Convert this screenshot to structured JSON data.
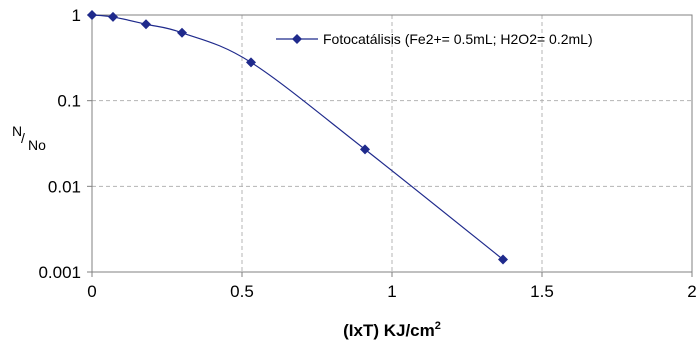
{
  "chart_data": {
    "type": "line",
    "xlabel": "(IxT) KJ/cm",
    "xlabel_sup": "2",
    "ylabel_num": "N",
    "ylabel_den": "No",
    "xlim": [
      0,
      2
    ],
    "ylim": [
      0.001,
      1
    ],
    "yscale": "log",
    "xticks": [
      "0",
      "0.5",
      "1",
      "1.5",
      "2"
    ],
    "yticks": [
      "1",
      "0.1",
      "0.01",
      "0.001"
    ],
    "grid": true,
    "legend_position": "top-right",
    "colors": {
      "series": "#1f2a8c",
      "grid": "#b4b4b4",
      "axis": "#808080"
    },
    "series": [
      {
        "name": "Fotocatálisis (Fe2+= 0.5mL; H2O2= 0.2mL)",
        "x": [
          0,
          0.07,
          0.18,
          0.3,
          0.53,
          0.91,
          1.37
        ],
        "y": [
          1.0,
          0.95,
          0.78,
          0.62,
          0.28,
          0.027,
          0.0014
        ]
      }
    ]
  }
}
